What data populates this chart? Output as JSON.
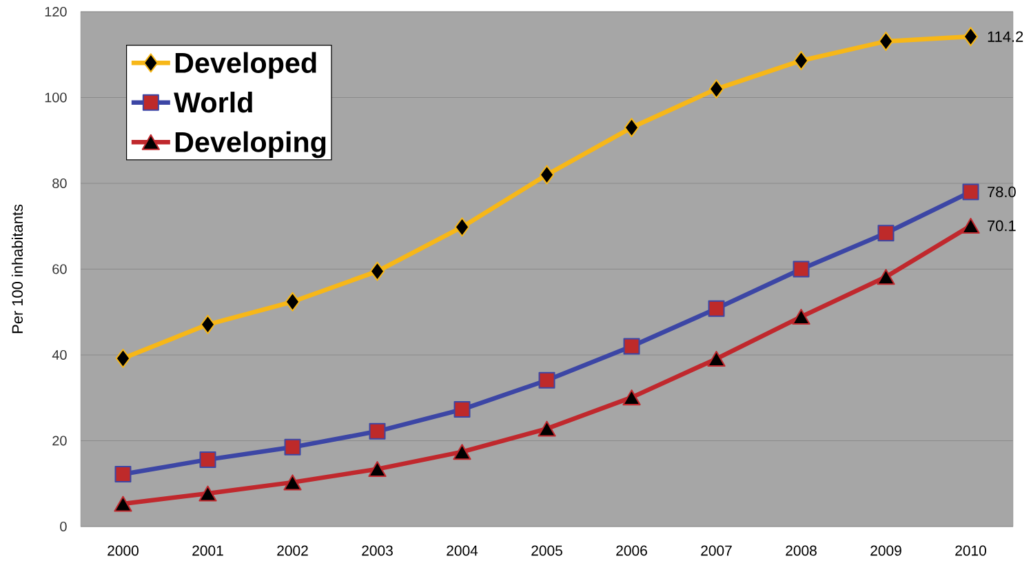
{
  "chart_data": {
    "type": "line",
    "ylabel": "Per 100 inhabitants",
    "categories": [
      "2000",
      "2001",
      "2002",
      "2003",
      "2004",
      "2005",
      "2006",
      "2007",
      "2008",
      "2009",
      "2010"
    ],
    "ylim": [
      0,
      120
    ],
    "yticks": [
      0,
      20,
      40,
      60,
      80,
      100,
      120
    ],
    "grid": "y",
    "legend": "top left",
    "line_style": "solid",
    "series": [
      {
        "name": "Developed",
        "color": "#f7b718",
        "marker": "diamond",
        "values": [
          39.2,
          47.1,
          52.4,
          59.5,
          69.8,
          82.0,
          93.0,
          102.0,
          108.6,
          113.1,
          114.2
        ],
        "value_labels": [
          null,
          null,
          null,
          null,
          null,
          null,
          null,
          null,
          null,
          null,
          "114.2"
        ]
      },
      {
        "name": "World",
        "color": "#3c46a5",
        "marker": "square",
        "values": [
          12.2,
          15.6,
          18.5,
          22.2,
          27.3,
          34.1,
          42.0,
          50.8,
          60.0,
          68.4,
          78.0
        ],
        "value_labels": [
          null,
          null,
          null,
          null,
          null,
          null,
          null,
          null,
          null,
          null,
          "78.0"
        ]
      },
      {
        "name": "Developing",
        "color": "#c0282d",
        "marker": "triangle",
        "values": [
          5.3,
          7.7,
          10.3,
          13.4,
          17.4,
          22.8,
          30.1,
          39.1,
          48.9,
          58.2,
          70.1
        ],
        "value_labels": [
          null,
          null,
          null,
          null,
          null,
          null,
          null,
          null,
          null,
          null,
          "70.1"
        ]
      }
    ]
  }
}
